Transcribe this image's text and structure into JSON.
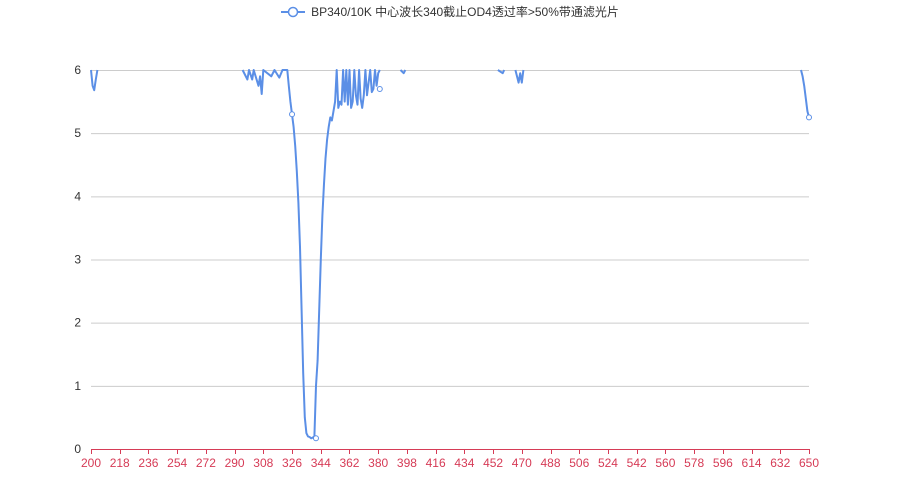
{
  "chart_data": {
    "type": "line",
    "title": "",
    "xlabel": "",
    "ylabel": "",
    "legend_position": "top-center",
    "grid": true,
    "xlim": [
      200,
      650
    ],
    "ylim": [
      0,
      6
    ],
    "x_ticks": [
      "200",
      "218",
      "236",
      "254",
      "272",
      "290",
      "308",
      "326",
      "344",
      "362",
      "380",
      "398",
      "416",
      "434",
      "452",
      "470",
      "488",
      "506",
      "524",
      "542",
      "560",
      "578",
      "596",
      "614",
      "632",
      "650"
    ],
    "y_ticks": [
      "0",
      "1",
      "2",
      "3",
      "4",
      "5",
      "6"
    ],
    "colors": {
      "line": "#5b8fe6",
      "grid": "#cccccc",
      "axis": "#d63b56",
      "ytick_text": "#333333"
    },
    "series": [
      {
        "name": "BP340/10K 中心波长340截止OD4透过率>50%带通滤光片",
        "points": [
          [
            200,
            6
          ],
          [
            201,
            5.75
          ],
          [
            202,
            5.68
          ],
          [
            203,
            5.85
          ],
          [
            204,
            6
          ],
          [
            295,
            6
          ],
          [
            298,
            5.85
          ],
          [
            299,
            6
          ],
          [
            301,
            5.85
          ],
          [
            302,
            6
          ],
          [
            305,
            5.75
          ],
          [
            306,
            5.9
          ],
          [
            307,
            5.62
          ],
          [
            308,
            6
          ],
          [
            313,
            5.9
          ],
          [
            315,
            6
          ],
          [
            318,
            5.88
          ],
          [
            320,
            6
          ],
          [
            323,
            6
          ],
          [
            324,
            5.75
          ],
          [
            325,
            5.5
          ],
          [
            326,
            5.3
          ],
          [
            327,
            5.1
          ],
          [
            328,
            4.8
          ],
          [
            329,
            4.4
          ],
          [
            330,
            3.9
          ],
          [
            331,
            3.2
          ],
          [
            332,
            2.2
          ],
          [
            333,
            1.2
          ],
          [
            334,
            0.5
          ],
          [
            335,
            0.25
          ],
          [
            336,
            0.2
          ],
          [
            337,
            0.19
          ],
          [
            338,
            0.17
          ],
          [
            339,
            0.18
          ],
          [
            340,
            0.2
          ],
          [
            341,
            1.0
          ],
          [
            342,
            1.4
          ],
          [
            343,
            2.2
          ],
          [
            344,
            3.0
          ],
          [
            345,
            3.7
          ],
          [
            346,
            4.2
          ],
          [
            347,
            4.6
          ],
          [
            348,
            4.9
          ],
          [
            349,
            5.1
          ],
          [
            350,
            5.25
          ],
          [
            351,
            5.2
          ],
          [
            352,
            5.35
          ],
          [
            353,
            5.5
          ],
          [
            354,
            6
          ],
          [
            355,
            5.4
          ],
          [
            356,
            5.5
          ],
          [
            357,
            5.45
          ],
          [
            358,
            6
          ],
          [
            359,
            5.5
          ],
          [
            360,
            6
          ],
          [
            361,
            5.45
          ],
          [
            362,
            6
          ],
          [
            363,
            5.4
          ],
          [
            364,
            5.5
          ],
          [
            365,
            6
          ],
          [
            366,
            5.6
          ],
          [
            367,
            5.45
          ],
          [
            368,
            6
          ],
          [
            369,
            5.55
          ],
          [
            370,
            5.4
          ],
          [
            371,
            5.6
          ],
          [
            372,
            6
          ],
          [
            373,
            5.6
          ],
          [
            374,
            5.8
          ],
          [
            375,
            6
          ],
          [
            376,
            5.65
          ],
          [
            377,
            5.7
          ],
          [
            378,
            6
          ],
          [
            379,
            5.75
          ],
          [
            380,
            5.95
          ],
          [
            381,
            6
          ],
          [
            394,
            6
          ],
          [
            396,
            5.95
          ],
          [
            397,
            6
          ],
          [
            455,
            6
          ],
          [
            458,
            5.95
          ],
          [
            459,
            6
          ],
          [
            466,
            6
          ],
          [
            468,
            5.8
          ],
          [
            469,
            5.95
          ],
          [
            470,
            5.8
          ],
          [
            471,
            6
          ],
          [
            645,
            6
          ],
          [
            646,
            5.9
          ],
          [
            647,
            5.75
          ],
          [
            648,
            5.55
          ],
          [
            649,
            5.35
          ],
          [
            650,
            5.25
          ]
        ]
      }
    ]
  }
}
